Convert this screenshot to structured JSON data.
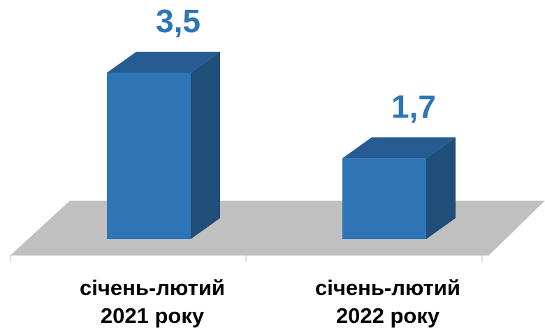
{
  "chart_data": {
    "type": "bar3d",
    "categories": [
      "січень-лютий 2021 року",
      "січень-лютий 2022 року"
    ],
    "values": [
      3.5,
      1.7
    ],
    "value_labels": [
      "3,5",
      "1,7"
    ],
    "color": "#2e75b6"
  }
}
